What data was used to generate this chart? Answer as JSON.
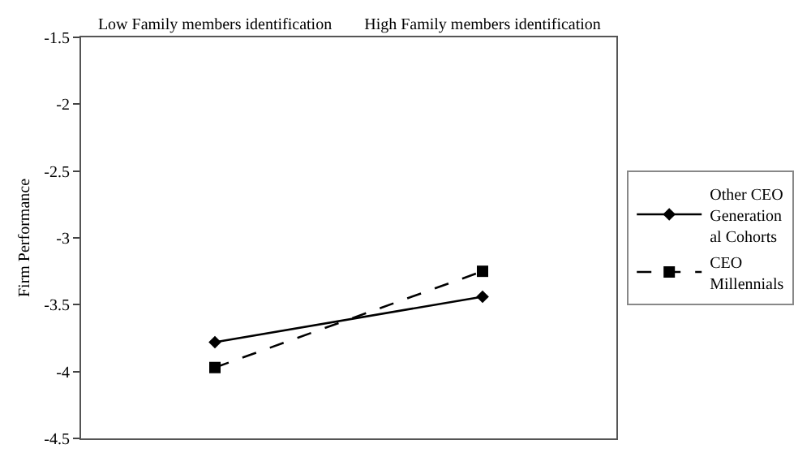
{
  "chart_data": {
    "type": "line",
    "ylabel": "Firm Performance",
    "categories": [
      "Low Family members identification",
      "High Family members identification"
    ],
    "series": [
      {
        "name": "Other CEO Generation al Cohorts",
        "color": "#000000",
        "values": [
          -3.78,
          -3.44
        ],
        "marker": "diamond",
        "line_style": "solid"
      },
      {
        "name": "CEO Millennials",
        "color": "#000000",
        "values": [
          -3.97,
          -3.25
        ],
        "marker": "square",
        "line_style": "dashed"
      }
    ],
    "ylim": [
      -4.5,
      -1.5
    ],
    "yticks": [
      -4.5,
      -4,
      -3.5,
      -3,
      -2.5,
      -2,
      -1.5
    ],
    "grid": false,
    "legend": "right"
  }
}
